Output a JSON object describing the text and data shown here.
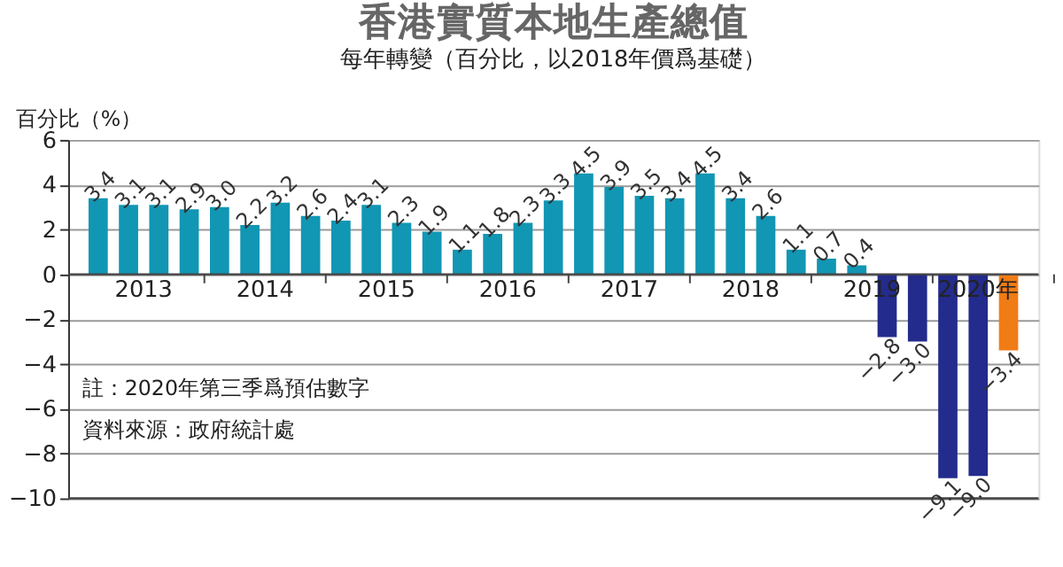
{
  "chart_data": {
    "type": "bar",
    "title": "香港實質本地生產總值",
    "subtitle": "每年轉變（百分比，以2018年價爲基礎）",
    "ylabel": "百分比（%）",
    "categories": [
      null,
      null,
      null,
      null,
      null,
      null,
      null,
      null,
      null,
      null,
      null,
      null,
      null,
      null,
      null,
      null,
      null,
      null,
      null,
      null,
      null,
      null,
      null,
      null,
      null,
      null,
      null,
      null,
      null,
      null,
      null
    ],
    "values": [
      3.4,
      3.1,
      3.1,
      2.9,
      3.0,
      2.2,
      3.2,
      2.6,
      2.4,
      3.1,
      2.3,
      1.9,
      1.1,
      1.8,
      2.3,
      3.3,
      4.5,
      3.9,
      3.5,
      3.4,
      4.5,
      3.4,
      2.6,
      1.1,
      0.7,
      0.4,
      -2.8,
      -3.0,
      -9.1,
      -9.0,
      -3.4
    ],
    "colors": [
      "#1196b4",
      "#1196b4",
      "#1196b4",
      "#1196b4",
      "#1196b4",
      "#1196b4",
      "#1196b4",
      "#1196b4",
      "#1196b4",
      "#1196b4",
      "#1196b4",
      "#1196b4",
      "#1196b4",
      "#1196b4",
      "#1196b4",
      "#1196b4",
      "#1196b4",
      "#1196b4",
      "#1196b4",
      "#1196b4",
      "#1196b4",
      "#1196b4",
      "#1196b4",
      "#1196b4",
      "#1196b4",
      "#1196b4",
      "#232b8c",
      "#232b8c",
      "#232b8c",
      "#232b8c",
      "#f07c16"
    ],
    "value_labels": [
      "3.4",
      "3.1",
      "3.1",
      "2.9",
      "3.0",
      "2.2",
      "3.2",
      "2.6",
      "2.4",
      "3.1",
      "2.3",
      "1.9",
      "1.1",
      "1.8",
      "2.3",
      "3.3",
      "4.5",
      "3.9",
      "3.5",
      "3.4",
      "4.5",
      "3.4",
      "2.6",
      "1.1",
      "0.7",
      "0.4",
      "−2.8",
      "−3.0",
      "−9.1",
      "−9.0",
      "−3.4"
    ],
    "ylim": [
      -10,
      6
    ],
    "yticks": [
      -10,
      -8,
      -6,
      -4,
      -2,
      0,
      2,
      4,
      6
    ],
    "grid": "y",
    "annotations": [
      "2013",
      "2014",
      "2015",
      "2016",
      "2017",
      "2018",
      "2019",
      "2020年",
      "註：2020年第三季爲預估數字",
      "資料來源：政府統計處"
    ]
  }
}
